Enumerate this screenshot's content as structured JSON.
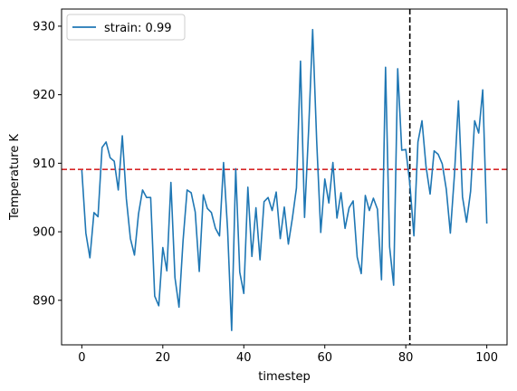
{
  "chart_data": {
    "type": "line",
    "title": "",
    "xlabel": "timestep",
    "ylabel": "Temperature K",
    "xlim": [
      -5,
      105
    ],
    "ylim": [
      883.5,
      932.5
    ],
    "x_ticks": [
      0,
      20,
      40,
      60,
      80,
      100
    ],
    "y_ticks": [
      890,
      900,
      910,
      920,
      930
    ],
    "grid": false,
    "legend": "top-left",
    "series": [
      {
        "name": "strain: 0.99",
        "color": "#1f77b4",
        "x_start": 0,
        "x_step": 1,
        "values": [
          909,
          899.8,
          896.2,
          902.8,
          902.2,
          912.3,
          913.1,
          910.8,
          910.3,
          906.1,
          914.0,
          904.8,
          899.0,
          896.6,
          902.6,
          906.1,
          905.0,
          905.0,
          890.6,
          889.2,
          897.7,
          894.3,
          907.2,
          893.3,
          889.0,
          898.7,
          906.1,
          905.7,
          902.9,
          894.2,
          905.4,
          903.4,
          902.8,
          900.5,
          899.4,
          910.1,
          900.3,
          885.6,
          909.2,
          894.1,
          891.0,
          906.5,
          896.4,
          903.5,
          895.9,
          904.4,
          905.0,
          903.1,
          905.8,
          899.0,
          903.6,
          898.2,
          902.0,
          906.4,
          924.9,
          902.1,
          914.8,
          929.5,
          913.2,
          899.9,
          907.7,
          904.2,
          910.1,
          902.0,
          905.7,
          900.5,
          903.5,
          904.5,
          896.3,
          893.9,
          905.3,
          903.1,
          904.9,
          903.3,
          893.0,
          924.0,
          897.8,
          892.2,
          923.8,
          911.9,
          912.0,
          907.0,
          899.4,
          913.1,
          916.2,
          909.5,
          905.5,
          911.8,
          911.3,
          909.9,
          906.2,
          899.8,
          908.2,
          919.1,
          905.1,
          901.4,
          905.9,
          916.2,
          914.4,
          920.7,
          901.2
        ]
      }
    ],
    "reference_lines": [
      {
        "orientation": "horizontal",
        "value": 909.1,
        "color": "#d62728",
        "style": "dashed"
      },
      {
        "orientation": "vertical",
        "value": 81,
        "color": "#000000",
        "style": "dashed"
      }
    ]
  }
}
